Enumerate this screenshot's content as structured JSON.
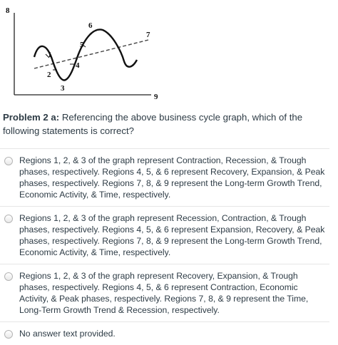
{
  "figure": {
    "labels": [
      "8",
      "6",
      "7",
      "5",
      "1",
      "4",
      "2",
      "3",
      "9"
    ]
  },
  "question": {
    "number": "Problem 2 a:",
    "text": " Referencing the above business cycle graph, which of the following statements is correct?"
  },
  "answers": [
    {
      "text": "Regions 1, 2, & 3 of the graph represent Contraction, Recession, & Trough phases, respectively. Regions 4, 5, & 6 represent Recovery, Expansion, & Peak phases, respectively. Regions 7, 8, & 9 represent the Long-term Growth Trend, Economic Activity, & Time, respectively."
    },
    {
      "text": "Regions 1, 2, & 3 of the graph represent Recession, Contraction, & Trough phases, respectively. Regions 4, 5, & 6 represent Expansion, Recovery, & Peak phases, respectively. Regions 7, 8, & 9 represent the Long-term Growth Trend, Economic Activity, & Time, respectively."
    },
    {
      "text": "Regions 1, 2, & 3 of the graph represent Recovery, Expansion, & Trough phases, respectively. Regions 4, 5, & 6 represent Contraction, Economic Activity, & Peak phases, respectively. Regions 7, 8, & 9 represent the Time, Long-Term Growth Trend & Recession, respectively."
    },
    {
      "text": "No answer text provided."
    }
  ]
}
